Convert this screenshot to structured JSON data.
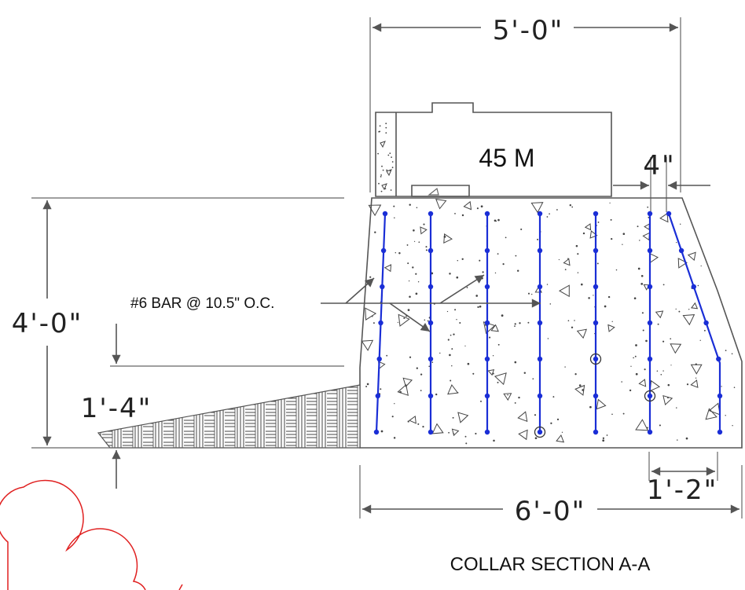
{
  "title": "COLLAR SECTION A-A",
  "curb_label": "45 M",
  "rebar_callout": "#6 BAR @ 10.5\" O.C.",
  "dimensions": {
    "top_width": "5'-0\"",
    "offset": "4\"",
    "height": "4'-0\"",
    "slope_depth": "1'-4\"",
    "base_width": "6'-0\"",
    "toe": "1'-2\""
  },
  "colors": {
    "rebar": "#1a2ed6",
    "lines": "#555555",
    "revision_cloud": "#e02020"
  }
}
